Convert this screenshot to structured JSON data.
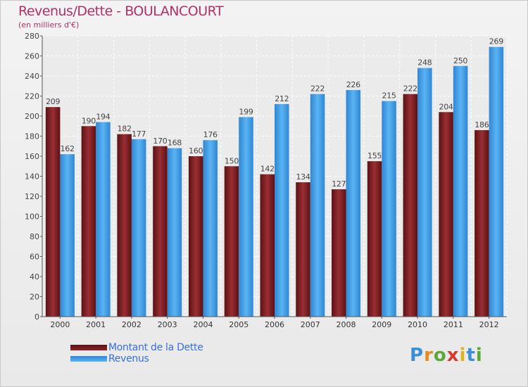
{
  "title": "Revenus/Dette - BOULANCOURT",
  "subtitle": "(en milliers d'€)",
  "colors": {
    "debt": "#7a1f23",
    "revenue": "#3f9ae6",
    "title": "#b0306a",
    "legend_text": "#3a6fd8"
  },
  "chart_data": {
    "type": "bar",
    "title": "Revenus/Dette - BOULANCOURT",
    "ylabel": "(en milliers d'€)",
    "xlabel": "",
    "categories": [
      "2000",
      "2001",
      "2002",
      "2003",
      "2004",
      "2005",
      "2006",
      "2007",
      "2008",
      "2009",
      "2010",
      "2011",
      "2012"
    ],
    "series": [
      {
        "name": "Montant de la Dette",
        "values": [
          209,
          190,
          182,
          170,
          160,
          150,
          142,
          134,
          127,
          155,
          222,
          204,
          186
        ]
      },
      {
        "name": "Revenus",
        "values": [
          162,
          194,
          177,
          168,
          176,
          199,
          212,
          222,
          226,
          215,
          248,
          250,
          269
        ]
      }
    ],
    "ylim": [
      0,
      280
    ],
    "yticks": [
      0,
      20,
      40,
      60,
      80,
      100,
      120,
      140,
      160,
      180,
      200,
      220,
      240,
      260,
      280
    ],
    "grid": true,
    "legend_position": "bottom-left"
  },
  "legend": {
    "items": [
      {
        "label": "Montant de la Dette"
      },
      {
        "label": "Revenus"
      }
    ]
  },
  "logo": {
    "text": "Proxiti",
    "letter_colors": [
      "#3a8fd6",
      "#e8891c",
      "#5aa83a",
      "#d63a2a",
      "#e0b21c",
      "#3a8fd6",
      "#5aa83a"
    ]
  }
}
